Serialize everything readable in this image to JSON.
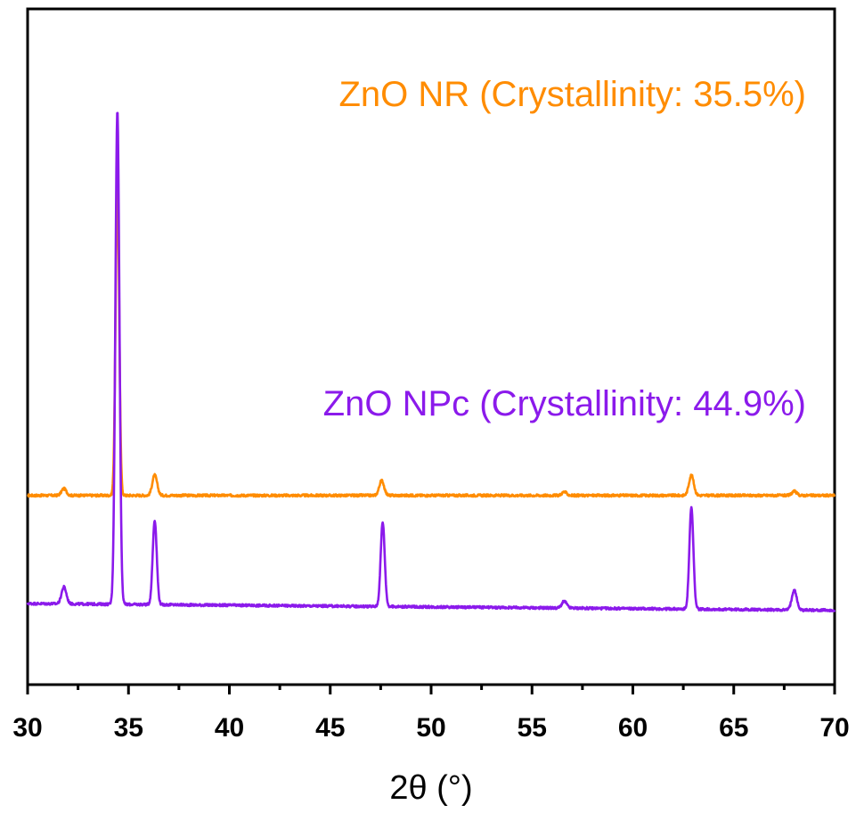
{
  "chart_data": {
    "type": "line",
    "xlabel": "2θ (°)",
    "ylabel": "",
    "xlim": [
      30,
      70
    ],
    "x_ticks": [
      "30",
      "35",
      "40",
      "45",
      "50",
      "55",
      "60",
      "65",
      "70"
    ],
    "y_ticks_shown": false,
    "grid": false,
    "legend": "in-plot text labels",
    "series": [
      {
        "name": "ZnO NR (Crystallinity: 35.5%)",
        "color": "#FF8C00",
        "baseline": 0.28,
        "baseline_slope": 0.0,
        "peaks": [
          {
            "x": 31.8,
            "height": 0.01,
            "width": 0.12
          },
          {
            "x": 34.45,
            "height": 0.455,
            "width": 0.09
          },
          {
            "x": 36.3,
            "height": 0.03,
            "width": 0.12
          },
          {
            "x": 47.55,
            "height": 0.022,
            "width": 0.12
          },
          {
            "x": 56.6,
            "height": 0.005,
            "width": 0.12
          },
          {
            "x": 62.9,
            "height": 0.03,
            "width": 0.12
          },
          {
            "x": 68.0,
            "height": 0.006,
            "width": 0.12
          }
        ]
      },
      {
        "name": "ZnO NPc (Crystallinity: 44.9%)",
        "color": "#8B1AEB",
        "baseline": 0.12,
        "baseline_slope": -0.00025,
        "peaks": [
          {
            "x": 31.8,
            "height": 0.025,
            "width": 0.12
          },
          {
            "x": 34.45,
            "height": 0.73,
            "width": 0.1
          },
          {
            "x": 36.3,
            "height": 0.125,
            "width": 0.1
          },
          {
            "x": 47.6,
            "height": 0.125,
            "width": 0.1
          },
          {
            "x": 56.6,
            "height": 0.01,
            "width": 0.12
          },
          {
            "x": 62.9,
            "height": 0.15,
            "width": 0.1
          },
          {
            "x": 68.0,
            "height": 0.03,
            "width": 0.12
          }
        ]
      }
    ]
  }
}
